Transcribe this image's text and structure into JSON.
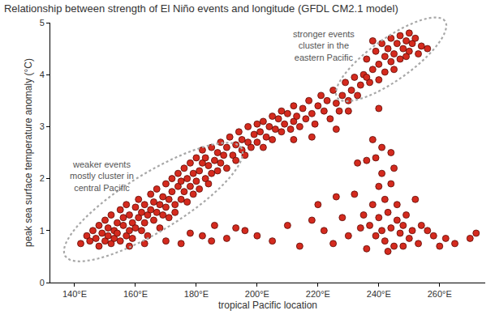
{
  "chart_data": {
    "type": "scatter",
    "title": "Relationship between strength of El Niño events and longitude (GFDL CM2.1 model)",
    "x_label": "tropical Pacific location",
    "y_label": "peak sea surface temperature anomaly (°C)",
    "annotations": [
      "weaker events\nmostly cluster in\ncentral Pacific",
      "stronger events\ncluster in the\neastern Pacific"
    ],
    "color": "#d42a1e",
    "marker": "circle",
    "grid": false,
    "xlim": [
      132,
      275
    ],
    "xticks": [
      {
        "value": 140,
        "label": "140°E"
      },
      {
        "value": 160,
        "label": "160°E"
      },
      {
        "value": 180,
        "label": "180°E"
      },
      {
        "value": 200,
        "label": "200°E"
      },
      {
        "value": 220,
        "label": "220°E"
      },
      {
        "value": 240,
        "label": "240°E"
      },
      {
        "value": 260,
        "label": "260°E"
      }
    ],
    "ylim": [
      0,
      5
    ],
    "yticks": [
      0,
      1,
      2,
      3,
      4,
      5
    ],
    "x": [
      142,
      144,
      145,
      146,
      147,
      148,
      148,
      149,
      150,
      150,
      151,
      151,
      152,
      152,
      153,
      153,
      154,
      154,
      155,
      155,
      156,
      156,
      157,
      157,
      158,
      158,
      159,
      159,
      160,
      160,
      161,
      161,
      162,
      162,
      163,
      163,
      164,
      164,
      165,
      165,
      166,
      166,
      167,
      167,
      168,
      168,
      169,
      169,
      170,
      170,
      171,
      171,
      172,
      172,
      173,
      173,
      174,
      174,
      175,
      175,
      176,
      176,
      177,
      177,
      178,
      178,
      179,
      179,
      180,
      180,
      181,
      181,
      182,
      182,
      183,
      183,
      184,
      184,
      185,
      185,
      186,
      187,
      187,
      188,
      188,
      189,
      190,
      190,
      191,
      192,
      193,
      193,
      194,
      195,
      195,
      196,
      197,
      197,
      198,
      199,
      200,
      200,
      201,
      202,
      202,
      203,
      204,
      205,
      205,
      206,
      207,
      208,
      208,
      209,
      210,
      211,
      212,
      212,
      213,
      214,
      215,
      216,
      217,
      218,
      219,
      220,
      221,
      222,
      223,
      224,
      225,
      226,
      227,
      228,
      229,
      230,
      231,
      232,
      233,
      234,
      235,
      236,
      237,
      238,
      239,
      240,
      240,
      241,
      242,
      242,
      243,
      244,
      244,
      245,
      245,
      246,
      247,
      247,
      248,
      249,
      249,
      250,
      250,
      251,
      252,
      253,
      254,
      256,
      238,
      236,
      226,
      230,
      218,
      212,
      233,
      236,
      238,
      241,
      244,
      240,
      232,
      235,
      237,
      238,
      239,
      240,
      240,
      241,
      242,
      242,
      243,
      244,
      244,
      245,
      246,
      246,
      247,
      248,
      249,
      250,
      251,
      252,
      253,
      254,
      236,
      243,
      248,
      239,
      245,
      241,
      170,
      175,
      178,
      182,
      186,
      190,
      193,
      196,
      200,
      205,
      214,
      218,
      222,
      225,
      228,
      230,
      258,
      262,
      265,
      270,
      272,
      256,
      260,
      234,
      226,
      220,
      158,
      163,
      185,
      210
    ],
    "values": [
      0.75,
      0.9,
      0.8,
      1.0,
      0.85,
      0.7,
      1.1,
      0.95,
      0.8,
      1.2,
      0.9,
      1.05,
      0.75,
      1.3,
      1.0,
      0.85,
      1.15,
      0.95,
      1.4,
      0.8,
      1.1,
      1.25,
      0.9,
      1.5,
      1.0,
      1.3,
      1.15,
      0.85,
      1.45,
      1.05,
      1.25,
      1.6,
      1.0,
      1.35,
      1.15,
      1.5,
      1.3,
      0.9,
      1.7,
      1.4,
      1.2,
      1.55,
      1.8,
      1.35,
      1.05,
      1.5,
      1.65,
      1.3,
      1.9,
      1.45,
      1.6,
      1.25,
      1.75,
      2.0,
      1.5,
      1.35,
      1.85,
      2.1,
      1.6,
      1.95,
      1.75,
      2.2,
      1.55,
      2.0,
      1.85,
      2.3,
      1.7,
      2.1,
      1.95,
      2.4,
      2.15,
      1.8,
      2.3,
      2.55,
      2.0,
      2.4,
      2.25,
      1.9,
      2.6,
      2.1,
      2.35,
      2.5,
      2.15,
      2.7,
      2.3,
      2.45,
      2.6,
      2.2,
      2.8,
      2.45,
      2.65,
      2.35,
      2.9,
      2.55,
      2.75,
      2.45,
      3.0,
      2.7,
      2.6,
      2.85,
      3.05,
      2.7,
      2.9,
      2.6,
      3.1,
      2.8,
      3.0,
      3.2,
      2.75,
      2.95,
      3.15,
      3.3,
      2.9,
      3.05,
      3.25,
      2.95,
      3.4,
      3.1,
      3.2,
      3.0,
      3.35,
      3.15,
      3.5,
      3.25,
      3.05,
      3.4,
      3.6,
      3.3,
      3.5,
      3.15,
      3.7,
      3.45,
      3.3,
      3.6,
      3.85,
      3.5,
      3.7,
      3.95,
      3.6,
      3.8,
      4.0,
      4.3,
      3.85,
      4.1,
      4.45,
      4.2,
      3.9,
      4.6,
      4.35,
      4.05,
      4.5,
      4.25,
      4.7,
      4.4,
      4.1,
      4.6,
      4.3,
      4.75,
      4.5,
      4.35,
      4.65,
      4.8,
      4.45,
      4.6,
      4.7,
      4.4,
      4.55,
      4.5,
      4.65,
      3.95,
      2.95,
      3.3,
      2.8,
      2.75,
      2.3,
      2.35,
      2.75,
      2.6,
      2.5,
      3.35,
      1.7,
      1.3,
      1.1,
      1.5,
      0.9,
      1.85,
      1.25,
      1.0,
      1.6,
      0.8,
      1.35,
      1.05,
      1.9,
      0.7,
      1.2,
      1.5,
      0.95,
      1.1,
      1.3,
      0.85,
      1.0,
      1.6,
      0.75,
      1.1,
      0.65,
      0.6,
      0.7,
      2.4,
      2.2,
      2.1,
      0.8,
      0.75,
      0.95,
      0.9,
      1.1,
      0.85,
      1.05,
      1.0,
      0.9,
      0.8,
      0.7,
      1.2,
      1.0,
      0.75,
      1.25,
      0.9,
      0.9,
      0.85,
      0.75,
      0.85,
      0.95,
      1.0,
      0.7,
      1.05,
      1.65,
      1.5,
      0.7,
      0.75,
      0.8,
      1.1
    ]
  }
}
